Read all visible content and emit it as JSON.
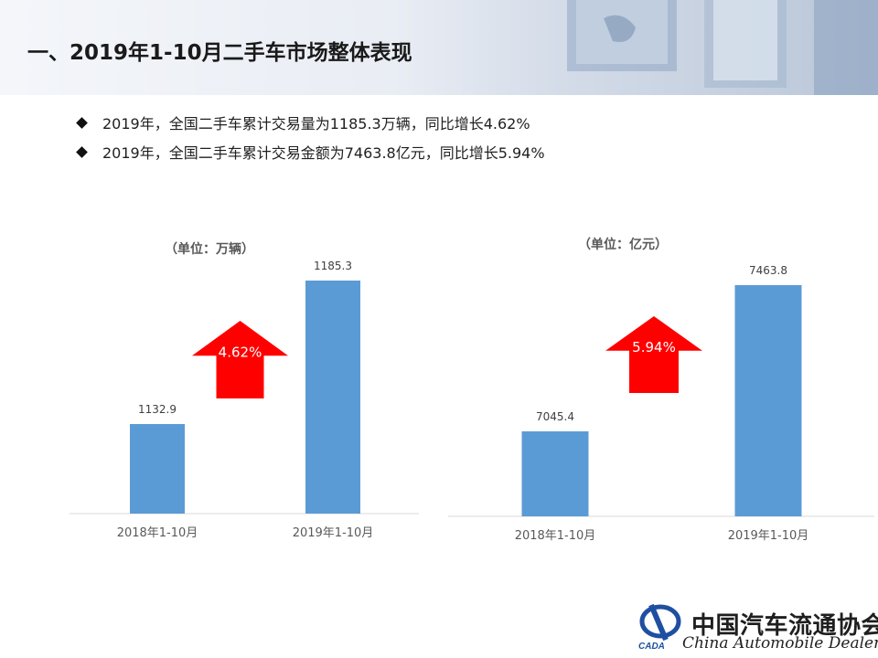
{
  "header": {
    "title": "一、2019年1-10月二手车市场整体表现"
  },
  "bullets": [
    "2019年，全国二手车累计交易量为1185.3万辆，同比增长4.62%",
    "2019年，全国二手车累计交易金额为7463.8亿元，同比增长5.94%"
  ],
  "chart_data": [
    {
      "type": "bar",
      "unit_label": "（单位：万辆）",
      "categories": [
        "2018年1-10月",
        "2019年1-10月"
      ],
      "values": [
        1132.9,
        1185.3
      ],
      "value_labels": [
        "1132.9",
        "1185.3"
      ],
      "growth_label": "4.62%",
      "bar_color": "#5b9bd5",
      "arrow_color": "#ff0000"
    },
    {
      "type": "bar",
      "unit_label": "（单位：亿元）",
      "categories": [
        "2018年1-10月",
        "2019年1-10月"
      ],
      "values": [
        7045.4,
        7463.8
      ],
      "value_labels": [
        "7045.4",
        "7463.8"
      ],
      "growth_label": "5.94%",
      "bar_color": "#5b9bd5",
      "arrow_color": "#ff0000"
    }
  ],
  "logo": {
    "name_cn": "中国汽车流通协会",
    "name_en": "China Automobile Dealers",
    "abbr": "CADA"
  }
}
